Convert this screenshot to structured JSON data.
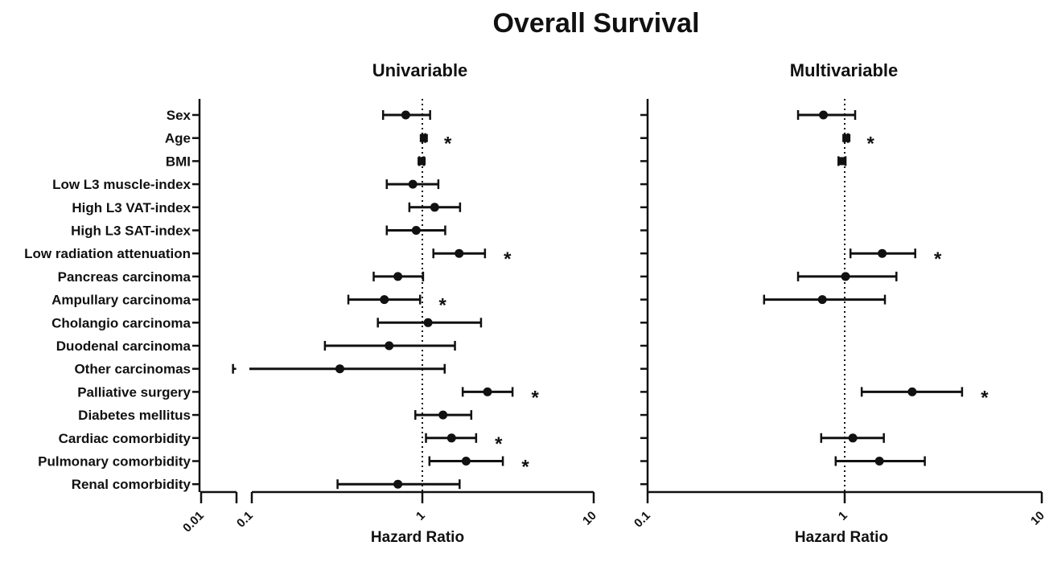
{
  "chart_data": {
    "title": "Overall Survival",
    "categories": [
      "Sex",
      "Age",
      "BMI",
      "Low L3 muscle-index",
      "High L3 VAT-index",
      "High L3 SAT-index",
      "Low radiation attenuation",
      "Pancreas carcinoma",
      "Ampullary carcinoma",
      "Cholangio carcinoma",
      "Duodenal carcinoma",
      "Other carcinomas",
      "Palliative surgery",
      "Diabetes mellitus",
      "Cardiac comorbidity",
      "Pulmonary comorbidity",
      "Renal comorbidity"
    ],
    "panels": [
      {
        "subtitle": "Univariable",
        "type": "forest",
        "xlabel": "Hazard Ratio",
        "x_scale": "log",
        "x_ticks": [
          "0.01",
          "0.1",
          "1",
          "10"
        ],
        "reference_line": 1,
        "axis_break": true,
        "points": [
          {
            "hr": 0.8,
            "lower": 0.59,
            "upper": 1.11,
            "significant": false
          },
          {
            "hr": 1.02,
            "lower": 1.0,
            "upper": 1.04,
            "significant": true
          },
          {
            "hr": 0.99,
            "lower": 0.96,
            "upper": 1.02,
            "significant": false
          },
          {
            "hr": 0.88,
            "lower": 0.62,
            "upper": 1.24,
            "significant": false
          },
          {
            "hr": 1.18,
            "lower": 0.84,
            "upper": 1.66,
            "significant": false
          },
          {
            "hr": 0.92,
            "lower": 0.62,
            "upper": 1.36,
            "significant": false
          },
          {
            "hr": 1.64,
            "lower": 1.16,
            "upper": 2.32,
            "significant": true
          },
          {
            "hr": 0.72,
            "lower": 0.52,
            "upper": 1.01,
            "significant": false
          },
          {
            "hr": 0.6,
            "lower": 0.37,
            "upper": 0.97,
            "significant": true
          },
          {
            "hr": 1.08,
            "lower": 0.55,
            "upper": 2.2,
            "significant": false
          },
          {
            "hr": 0.64,
            "lower": 0.27,
            "upper": 1.55,
            "significant": false
          },
          {
            "hr": 0.33,
            "lower": 0.08,
            "upper": 1.35,
            "significant": false
          },
          {
            "hr": 2.4,
            "lower": 1.72,
            "upper": 3.36,
            "significant": true
          },
          {
            "hr": 1.32,
            "lower": 0.91,
            "upper": 1.93,
            "significant": false
          },
          {
            "hr": 1.48,
            "lower": 1.05,
            "upper": 2.06,
            "significant": true
          },
          {
            "hr": 1.8,
            "lower": 1.1,
            "upper": 2.95,
            "significant": true
          },
          {
            "hr": 0.72,
            "lower": 0.32,
            "upper": 1.65,
            "significant": false
          }
        ]
      },
      {
        "subtitle": "Multivariable",
        "type": "forest",
        "xlabel": "Hazard Ratio",
        "x_scale": "log",
        "x_ticks": [
          "0.1",
          "1",
          "10"
        ],
        "reference_line": 1,
        "axis_break": false,
        "points": [
          {
            "hr": 0.78,
            "lower": 0.58,
            "upper": 1.13,
            "significant": false
          },
          {
            "hr": 1.02,
            "lower": 1.0,
            "upper": 1.04,
            "significant": true
          },
          {
            "hr": 0.97,
            "lower": 0.93,
            "upper": 1.01,
            "significant": false
          },
          null,
          null,
          null,
          {
            "hr": 1.55,
            "lower": 1.07,
            "upper": 2.28,
            "significant": true
          },
          {
            "hr": 1.01,
            "lower": 0.58,
            "upper": 1.83,
            "significant": false
          },
          {
            "hr": 0.77,
            "lower": 0.39,
            "upper": 1.6,
            "significant": false
          },
          null,
          null,
          null,
          {
            "hr": 2.2,
            "lower": 1.22,
            "upper": 3.94,
            "significant": true
          },
          null,
          {
            "hr": 1.1,
            "lower": 0.76,
            "upper": 1.58,
            "significant": false
          },
          {
            "hr": 1.5,
            "lower": 0.9,
            "upper": 2.55,
            "significant": false
          },
          null
        ]
      }
    ],
    "significance_marker": "*"
  }
}
